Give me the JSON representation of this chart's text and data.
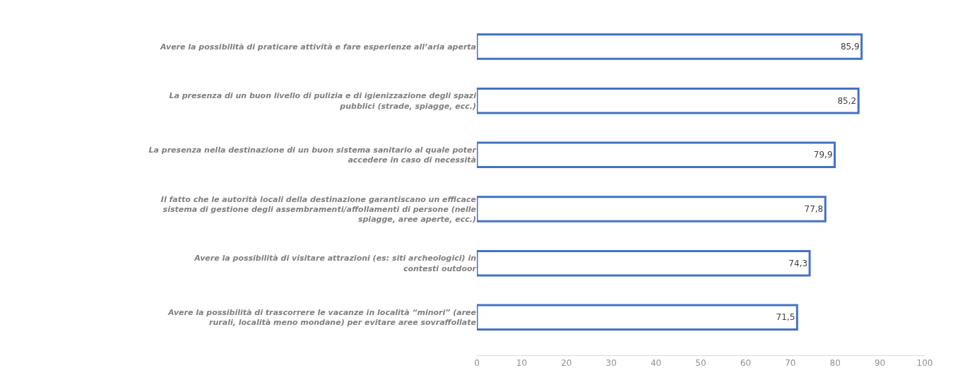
{
  "chart_data": {
    "type": "bar",
    "orientation": "horizontal",
    "categories": [
      "Avere la possibilità di praticare attività e fare esperienze all’aria aperta",
      "La presenza di un buon livello di pulizia e di igienizzazione degli spazi pubblici (strade, spiagge, ecc.)",
      "La presenza nella destinazione di un buon sistema sanitario al quale poter accedere in caso di necessità",
      "Il fatto che le autorità locali della destinazione garantiscano un efficace sistema di gestione degli assembramenti/affollamenti di persone (nelle spiagge, aree aperte, ecc.)",
      "Avere la possibilità di visitare attrazioni (es: siti archeologici) in contesti outdoor",
      "Avere la possibilità di trascorrere le vacanze in località “minori” (aree rurali, località meno mondane) per evitare aree sovraffollate"
    ],
    "values": [
      85.9,
      85.2,
      79.9,
      77.8,
      74.3,
      71.5
    ],
    "value_labels": [
      "85,9",
      "85,2",
      "79,9",
      "77,8",
      "74,3",
      "71,5"
    ],
    "color": "#4472c4",
    "xlim": [
      0,
      100
    ],
    "xticks": [
      0,
      10,
      20,
      30,
      40,
      50,
      60,
      70,
      80,
      90,
      100
    ]
  }
}
